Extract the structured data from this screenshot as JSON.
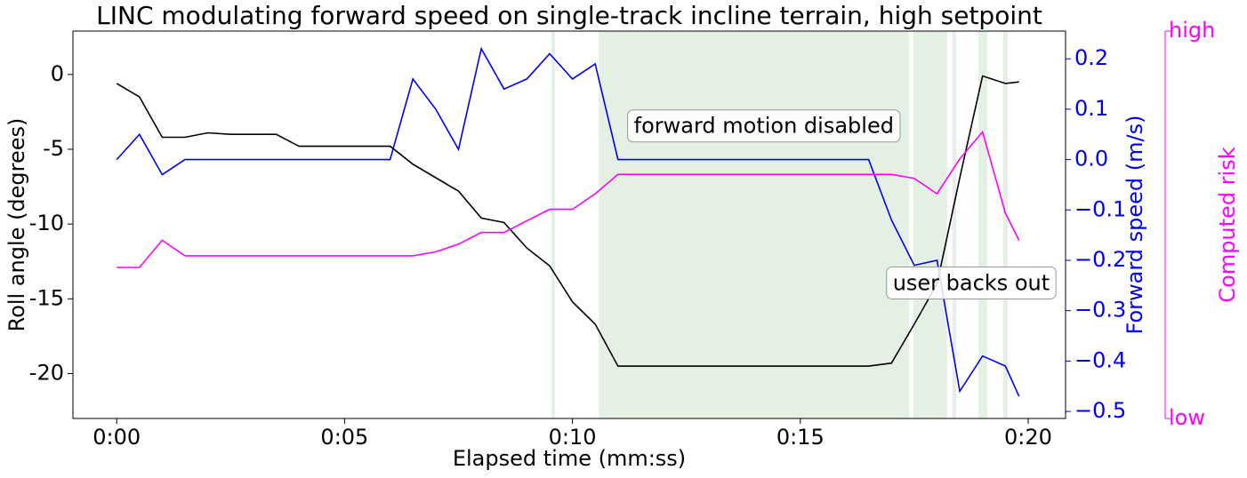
{
  "chart_data": {
    "type": "line",
    "title": "LINC modulating forward speed on single-track incline terrain, high setpoint",
    "x_label": "Elapsed time (mm:ss)",
    "y_label": "Roll angle (degrees)",
    "y2_label": "Forward speed (m/s)",
    "y3_label": "Computed risk",
    "x": [
      0,
      0.5,
      1,
      1.5,
      2,
      2.5,
      3,
      3.5,
      4,
      4.5,
      5,
      5.5,
      6,
      6.5,
      7,
      7.5,
      8,
      8.5,
      9,
      9.5,
      10,
      10.5,
      11,
      11.5,
      12,
      12.5,
      13,
      13.5,
      14,
      14.5,
      15,
      15.5,
      16,
      16.5,
      17,
      17.5,
      18,
      18.5,
      19,
      19.5,
      19.8
    ],
    "xlim": [
      -0.96,
      20.82
    ],
    "xticks": [
      {
        "value": 0,
        "label": "0:00"
      },
      {
        "value": 5,
        "label": "0:05"
      },
      {
        "value": 10,
        "label": "0:10"
      },
      {
        "value": 15,
        "label": "0:15"
      },
      {
        "value": 20,
        "label": "0:20"
      }
    ],
    "ylim": [
      -23,
      2.9
    ],
    "yticks": [
      0,
      -5,
      -10,
      -15,
      -20
    ],
    "y2lim": [
      -0.514,
      0.255
    ],
    "y2ticks": [
      {
        "value": 0.2,
        "label": "0.2"
      },
      {
        "value": 0.1,
        "label": "0.1"
      },
      {
        "value": 0,
        "label": "0.0"
      },
      {
        "value": -0.1,
        "label": "−0.1"
      },
      {
        "value": -0.2,
        "label": "−0.2"
      },
      {
        "value": -0.3,
        "label": "−0.3"
      },
      {
        "value": -0.4,
        "label": "−0.4"
      },
      {
        "value": -0.5,
        "label": "−0.5"
      }
    ],
    "y2color": "#0000ee",
    "y3lim": [
      0,
      1
    ],
    "y3ticks": [
      {
        "value": 1,
        "label": "high"
      },
      {
        "value": 0,
        "label": "low"
      }
    ],
    "y3color": "#ff00ff",
    "shaded_spans": [
      [
        9.54,
        9.62
      ],
      [
        10.58,
        17.39
      ],
      [
        17.48,
        18.22
      ],
      [
        18.34,
        18.42
      ],
      [
        18.91,
        19.1
      ],
      [
        19.45,
        19.55
      ]
    ],
    "shade_color": "#e3f0e3",
    "series": [
      {
        "name": "Roll angle",
        "color": "#000000",
        "axis": "y",
        "values": [
          -0.6,
          -1.5,
          -4.2,
          -4.2,
          -3.9,
          -4.0,
          -4.0,
          -4.0,
          -4.8,
          -4.8,
          -4.8,
          -4.8,
          -4.8,
          -6,
          -6.9,
          -7.8,
          -9.6,
          -9.9,
          -11.6,
          -12.8,
          -15.2,
          -16.7,
          -19.5,
          -19.5,
          -19.5,
          -19.5,
          -19.5,
          -19.5,
          -19.5,
          -19.5,
          -19.5,
          -19.5,
          -19.5,
          -19.5,
          -19.3,
          -16.7,
          -14.0,
          -6.9,
          -0.1,
          -0.6,
          -0.5
        ]
      },
      {
        "name": "Forward speed",
        "color": "#0000ee",
        "axis": "y2",
        "values": [
          0,
          0.05,
          -0.03,
          0,
          0,
          0,
          0,
          0,
          0,
          0,
          0,
          0,
          0,
          0.16,
          0.1,
          0.02,
          0.22,
          0.14,
          0.16,
          0.21,
          0.16,
          0.19,
          0,
          0,
          0,
          0,
          0,
          0,
          0,
          0,
          0,
          0,
          0,
          0,
          -0.12,
          -0.21,
          -0.2,
          -0.46,
          -0.39,
          -0.41,
          -0.47
        ]
      },
      {
        "name": "Computed risk",
        "color": "#ff00ff",
        "axis": "y3",
        "values": [
          0.39,
          0.39,
          0.46,
          0.42,
          0.42,
          0.42,
          0.42,
          0.42,
          0.42,
          0.42,
          0.42,
          0.42,
          0.42,
          0.42,
          0.43,
          0.45,
          0.48,
          0.48,
          0.51,
          0.54,
          0.54,
          0.58,
          0.63,
          0.63,
          0.63,
          0.63,
          0.63,
          0.63,
          0.63,
          0.63,
          0.63,
          0.63,
          0.63,
          0.63,
          0.63,
          0.62,
          0.58,
          0.67,
          0.74,
          0.53,
          0.46
        ]
      }
    ],
    "annotations": [
      {
        "text": "forward motion disabled",
        "x": 14.2,
        "y": -3.5
      },
      {
        "text": "user backs out",
        "x": 18.75,
        "y": -14.0
      }
    ]
  }
}
